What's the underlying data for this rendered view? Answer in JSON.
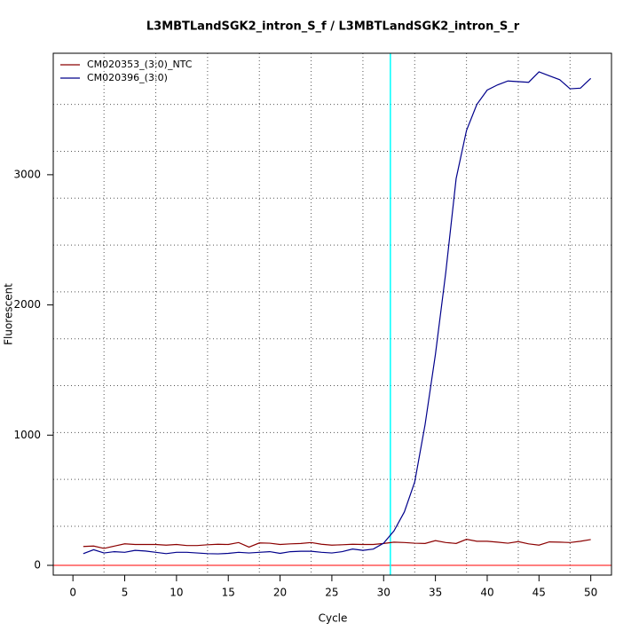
{
  "chart_data": {
    "type": "line",
    "title": "L3MBTLandSGK2_intron_S_f / L3MBTLandSGK2_intron_S_r",
    "x_label": "Cycle",
    "y_label": "Fluorescent",
    "x": [
      1,
      2,
      3,
      4,
      5,
      6,
      7,
      8,
      9,
      10,
      11,
      12,
      13,
      14,
      15,
      16,
      17,
      18,
      19,
      20,
      21,
      22,
      23,
      24,
      25,
      26,
      27,
      28,
      29,
      30,
      31,
      32,
      33,
      34,
      35,
      36,
      37,
      38,
      39,
      40,
      41,
      42,
      43,
      44,
      45,
      46,
      47,
      48,
      49,
      50
    ],
    "series": [
      {
        "name": "CM020353_(3:0)_NTC",
        "color": "#8b0000",
        "values": [
          145,
          148,
          130,
          148,
          165,
          160,
          160,
          160,
          155,
          160,
          152,
          152,
          158,
          162,
          160,
          175,
          140,
          172,
          170,
          160,
          165,
          168,
          175,
          162,
          155,
          158,
          162,
          160,
          160,
          168,
          178,
          175,
          170,
          168,
          190,
          175,
          168,
          200,
          185,
          185,
          178,
          170,
          182,
          165,
          155,
          180,
          178,
          175,
          185,
          198
        ]
      },
      {
        "name": "CM020396_(3:0)",
        "color": "#00008b",
        "values": [
          90,
          120,
          95,
          105,
          100,
          115,
          110,
          100,
          90,
          100,
          100,
          95,
          90,
          88,
          92,
          100,
          95,
          100,
          105,
          92,
          105,
          108,
          108,
          100,
          95,
          105,
          125,
          115,
          125,
          170,
          265,
          410,
          640,
          1080,
          1620,
          2250,
          2970,
          3340,
          3540,
          3650,
          3690,
          3720,
          3715,
          3710,
          3790,
          3760,
          3730,
          3660,
          3665,
          3740
        ]
      }
    ],
    "xlim": [
      -1.9,
      52
    ],
    "ylim": [
      -75,
      3933
    ],
    "xticks": [
      0,
      5,
      10,
      15,
      20,
      25,
      30,
      35,
      40,
      45,
      50
    ],
    "yticks": [
      0,
      1000,
      2000,
      3000
    ],
    "x_grid": [
      3,
      8,
      13,
      18,
      23,
      28,
      33,
      38,
      43,
      48
    ],
    "y_grid": [
      300,
      660,
      1020,
      1380,
      1740,
      2100,
      2460,
      2820,
      3180,
      3540
    ],
    "threshold": {
      "x": 30.65,
      "color": "#00ffff"
    },
    "baseline": {
      "y": 0,
      "color": "#ff0000"
    },
    "legend": "top-left"
  }
}
